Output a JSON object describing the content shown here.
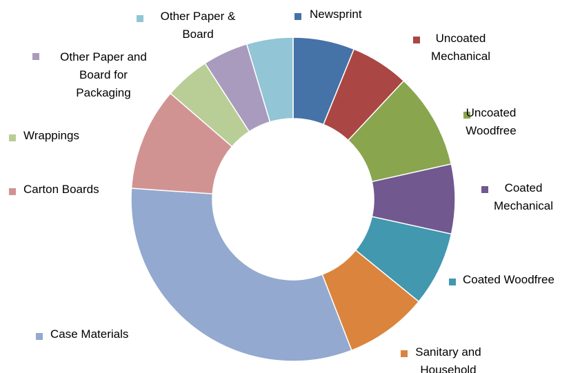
{
  "chart_data": {
    "type": "donut",
    "title": "",
    "start_angle_deg": 0,
    "direction": "clockwise",
    "series": [
      {
        "name": "Newsprint",
        "lines": [
          "Newsprint"
        ],
        "value": 6.1,
        "color": "#4572A7"
      },
      {
        "name": "Uncoated Mechanical",
        "lines": [
          "Uncoated",
          "Mechanical"
        ],
        "value": 5.8,
        "color": "#AA4643"
      },
      {
        "name": "Uncoated Woodfree",
        "lines": [
          "Uncoated",
          "Woodfree"
        ],
        "value": 9.5,
        "color": "#89A54E"
      },
      {
        "name": "Coated Mechanical",
        "lines": [
          "Coated",
          "Mechanical"
        ],
        "value": 6.9,
        "color": "#71588F"
      },
      {
        "name": "Coated Woodfree",
        "lines": [
          "Coated Woodfree"
        ],
        "value": 7.4,
        "color": "#4198AF"
      },
      {
        "name": "Sanitary and Household",
        "lines": [
          "Sanitary and",
          "Household"
        ],
        "value": 8.2,
        "color": "#DB843D"
      },
      {
        "name": "Case Materials",
        "lines": [
          "Case Materials"
        ],
        "value": 31.8,
        "color": "#93A9CF"
      },
      {
        "name": "Carton Boards",
        "lines": [
          "Carton Boards"
        ],
        "value": 10.2,
        "color": "#D19392"
      },
      {
        "name": "Wrappings",
        "lines": [
          "Wrappings"
        ],
        "value": 4.5,
        "color": "#B9CD96"
      },
      {
        "name": "Other Paper and Board for Packaging",
        "lines": [
          "Other Paper and",
          "Board for",
          "Packaging"
        ],
        "value": 4.5,
        "color": "#A99BBD"
      },
      {
        "name": "Other Paper & Board",
        "lines": [
          "Other Paper &",
          "Board"
        ],
        "value": 4.6,
        "color": "#92C5D5"
      }
    ]
  }
}
